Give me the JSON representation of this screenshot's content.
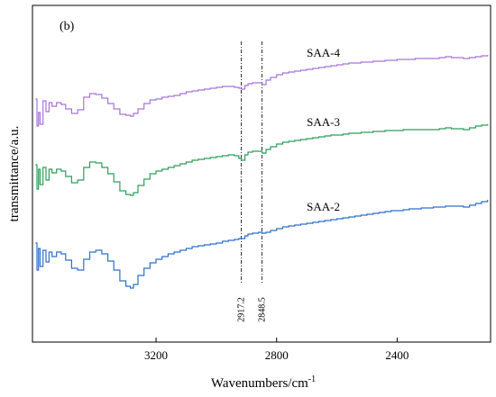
{
  "chart_data": {
    "type": "line",
    "panel_label": "(b)",
    "xlabel": "Wavenumbers/cm",
    "xlabel_sup": "-1",
    "ylabel": "transmittance/a.u.",
    "xlim": [
      3610,
      2090
    ],
    "x_reversed": true,
    "x_ticks": [
      3200,
      2800,
      2400
    ],
    "y_ticks_labeled": false,
    "grid": false,
    "legend": "none",
    "reference_lines": [
      {
        "x": 2917.2,
        "label": "2917.2"
      },
      {
        "x": 2848.5,
        "label": "2848.5"
      }
    ],
    "series": [
      {
        "name": "SAA-4",
        "color": "#a874d9",
        "label_at": 2700,
        "points": [
          [
            3600,
            110
          ],
          [
            3595,
            140
          ],
          [
            3590,
            125
          ],
          [
            3585,
            138
          ],
          [
            3575,
            112
          ],
          [
            3565,
            124
          ],
          [
            3555,
            114
          ],
          [
            3545,
            118
          ],
          [
            3530,
            114
          ],
          [
            3515,
            116
          ],
          [
            3500,
            121
          ],
          [
            3480,
            126
          ],
          [
            3460,
            122
          ],
          [
            3440,
            108
          ],
          [
            3420,
            104
          ],
          [
            3400,
            105
          ],
          [
            3380,
            109
          ],
          [
            3360,
            115
          ],
          [
            3340,
            121
          ],
          [
            3320,
            127
          ],
          [
            3300,
            128
          ],
          [
            3285,
            129
          ],
          [
            3275,
            126
          ],
          [
            3260,
            121
          ],
          [
            3240,
            115
          ],
          [
            3220,
            111
          ],
          [
            3200,
            110
          ],
          [
            3180,
            108
          ],
          [
            3160,
            107
          ],
          [
            3140,
            106
          ],
          [
            3120,
            104
          ],
          [
            3100,
            102
          ],
          [
            3080,
            101
          ],
          [
            3060,
            100
          ],
          [
            3040,
            99
          ],
          [
            3020,
            98
          ],
          [
            3000,
            97
          ],
          [
            2980,
            96
          ],
          [
            2960,
            96
          ],
          [
            2940,
            97
          ],
          [
            2925,
            98
          ],
          [
            2917,
            99
          ],
          [
            2905,
            95
          ],
          [
            2895,
            93
          ],
          [
            2880,
            92
          ],
          [
            2860,
            92
          ],
          [
            2848,
            94
          ],
          [
            2835,
            89
          ],
          [
            2820,
            86
          ],
          [
            2800,
            83
          ],
          [
            2780,
            81
          ],
          [
            2760,
            80
          ],
          [
            2740,
            79
          ],
          [
            2720,
            78
          ],
          [
            2700,
            77
          ],
          [
            2680,
            76
          ],
          [
            2660,
            75
          ],
          [
            2640,
            74
          ],
          [
            2620,
            73
          ],
          [
            2600,
            72
          ],
          [
            2580,
            71
          ],
          [
            2560,
            70
          ],
          [
            2540,
            70
          ],
          [
            2520,
            69
          ],
          [
            2500,
            69
          ],
          [
            2480,
            68
          ],
          [
            2460,
            68
          ],
          [
            2440,
            67
          ],
          [
            2420,
            67
          ],
          [
            2400,
            66
          ],
          [
            2380,
            66
          ],
          [
            2360,
            66
          ],
          [
            2340,
            65
          ],
          [
            2320,
            65
          ],
          [
            2300,
            65
          ],
          [
            2280,
            65
          ],
          [
            2260,
            64
          ],
          [
            2240,
            63
          ],
          [
            2220,
            64
          ],
          [
            2200,
            64
          ],
          [
            2180,
            65
          ],
          [
            2160,
            64
          ],
          [
            2140,
            63
          ],
          [
            2120,
            62
          ],
          [
            2100,
            61
          ]
        ]
      },
      {
        "name": "SAA-3",
        "color": "#2e9e5b",
        "label_at": 2700,
        "points": [
          [
            3600,
            183
          ],
          [
            3595,
            210
          ],
          [
            3590,
            188
          ],
          [
            3585,
            205
          ],
          [
            3575,
            186
          ],
          [
            3565,
            200
          ],
          [
            3555,
            188
          ],
          [
            3545,
            192
          ],
          [
            3530,
            188
          ],
          [
            3515,
            190
          ],
          [
            3500,
            196
          ],
          [
            3480,
            203
          ],
          [
            3460,
            200
          ],
          [
            3440,
            186
          ],
          [
            3420,
            180
          ],
          [
            3400,
            181
          ],
          [
            3380,
            186
          ],
          [
            3360,
            193
          ],
          [
            3340,
            202
          ],
          [
            3320,
            212
          ],
          [
            3300,
            216
          ],
          [
            3285,
            217
          ],
          [
            3275,
            214
          ],
          [
            3260,
            206
          ],
          [
            3240,
            199
          ],
          [
            3220,
            193
          ],
          [
            3200,
            190
          ],
          [
            3180,
            188
          ],
          [
            3160,
            186
          ],
          [
            3140,
            184
          ],
          [
            3120,
            182
          ],
          [
            3100,
            180
          ],
          [
            3080,
            178
          ],
          [
            3060,
            177
          ],
          [
            3040,
            176
          ],
          [
            3020,
            175
          ],
          [
            3000,
            174
          ],
          [
            2980,
            173
          ],
          [
            2960,
            172
          ],
          [
            2940,
            173
          ],
          [
            2925,
            176
          ],
          [
            2917,
            178
          ],
          [
            2905,
            172
          ],
          [
            2895,
            169
          ],
          [
            2880,
            168
          ],
          [
            2860,
            168
          ],
          [
            2848,
            170
          ],
          [
            2835,
            166
          ],
          [
            2820,
            163
          ],
          [
            2800,
            160
          ],
          [
            2780,
            158
          ],
          [
            2760,
            157
          ],
          [
            2740,
            156
          ],
          [
            2720,
            155
          ],
          [
            2700,
            154
          ],
          [
            2680,
            153
          ],
          [
            2660,
            152
          ],
          [
            2640,
            151
          ],
          [
            2620,
            150
          ],
          [
            2600,
            150
          ],
          [
            2580,
            149
          ],
          [
            2560,
            148
          ],
          [
            2540,
            148
          ],
          [
            2520,
            147
          ],
          [
            2500,
            147
          ],
          [
            2480,
            146
          ],
          [
            2460,
            146
          ],
          [
            2440,
            145
          ],
          [
            2420,
            145
          ],
          [
            2400,
            145
          ],
          [
            2380,
            144
          ],
          [
            2360,
            144
          ],
          [
            2340,
            144
          ],
          [
            2320,
            144
          ],
          [
            2300,
            144
          ],
          [
            2280,
            144
          ],
          [
            2260,
            143
          ],
          [
            2240,
            142
          ],
          [
            2220,
            143
          ],
          [
            2200,
            143
          ],
          [
            2180,
            144
          ],
          [
            2160,
            142
          ],
          [
            2140,
            140
          ],
          [
            2120,
            139
          ],
          [
            2100,
            138
          ]
        ]
      },
      {
        "name": "SAA-2",
        "color": "#2f6fc9",
        "label_at": 2700,
        "points": [
          [
            3600,
            270
          ],
          [
            3595,
            300
          ],
          [
            3590,
            276
          ],
          [
            3585,
            296
          ],
          [
            3575,
            278
          ],
          [
            3565,
            291
          ],
          [
            3555,
            280
          ],
          [
            3545,
            285
          ],
          [
            3530,
            280
          ],
          [
            3515,
            282
          ],
          [
            3500,
            289
          ],
          [
            3480,
            298
          ],
          [
            3460,
            300
          ],
          [
            3440,
            288
          ],
          [
            3420,
            280
          ],
          [
            3400,
            278
          ],
          [
            3380,
            282
          ],
          [
            3360,
            290
          ],
          [
            3340,
            300
          ],
          [
            3320,
            312
          ],
          [
            3300,
            318
          ],
          [
            3285,
            320
          ],
          [
            3275,
            316
          ],
          [
            3260,
            306
          ],
          [
            3240,
            298
          ],
          [
            3220,
            292
          ],
          [
            3200,
            288
          ],
          [
            3180,
            285
          ],
          [
            3160,
            282
          ],
          [
            3140,
            280
          ],
          [
            3120,
            278
          ],
          [
            3100,
            276
          ],
          [
            3080,
            274
          ],
          [
            3060,
            273
          ],
          [
            3040,
            272
          ],
          [
            3020,
            271
          ],
          [
            3000,
            270
          ],
          [
            2980,
            268
          ],
          [
            2960,
            267
          ],
          [
            2940,
            266
          ],
          [
            2925,
            265
          ],
          [
            2917,
            265
          ],
          [
            2905,
            262
          ],
          [
            2895,
            260
          ],
          [
            2880,
            259
          ],
          [
            2860,
            258
          ],
          [
            2848,
            259
          ],
          [
            2835,
            258
          ],
          [
            2820,
            256
          ],
          [
            2800,
            254
          ],
          [
            2780,
            252
          ],
          [
            2760,
            251
          ],
          [
            2740,
            250
          ],
          [
            2720,
            249
          ],
          [
            2700,
            248
          ],
          [
            2680,
            247
          ],
          [
            2660,
            246
          ],
          [
            2640,
            245
          ],
          [
            2620,
            244
          ],
          [
            2600,
            243
          ],
          [
            2580,
            242
          ],
          [
            2560,
            241
          ],
          [
            2540,
            240
          ],
          [
            2520,
            239
          ],
          [
            2500,
            238
          ],
          [
            2480,
            237
          ],
          [
            2460,
            236
          ],
          [
            2440,
            235
          ],
          [
            2420,
            234
          ],
          [
            2400,
            234
          ],
          [
            2380,
            233
          ],
          [
            2360,
            232
          ],
          [
            2340,
            232
          ],
          [
            2320,
            231
          ],
          [
            2300,
            231
          ],
          [
            2280,
            230
          ],
          [
            2260,
            230
          ],
          [
            2240,
            229
          ],
          [
            2220,
            229
          ],
          [
            2200,
            229
          ],
          [
            2180,
            230
          ],
          [
            2160,
            228
          ],
          [
            2140,
            226
          ],
          [
            2120,
            224
          ],
          [
            2100,
            222
          ]
        ]
      }
    ]
  }
}
